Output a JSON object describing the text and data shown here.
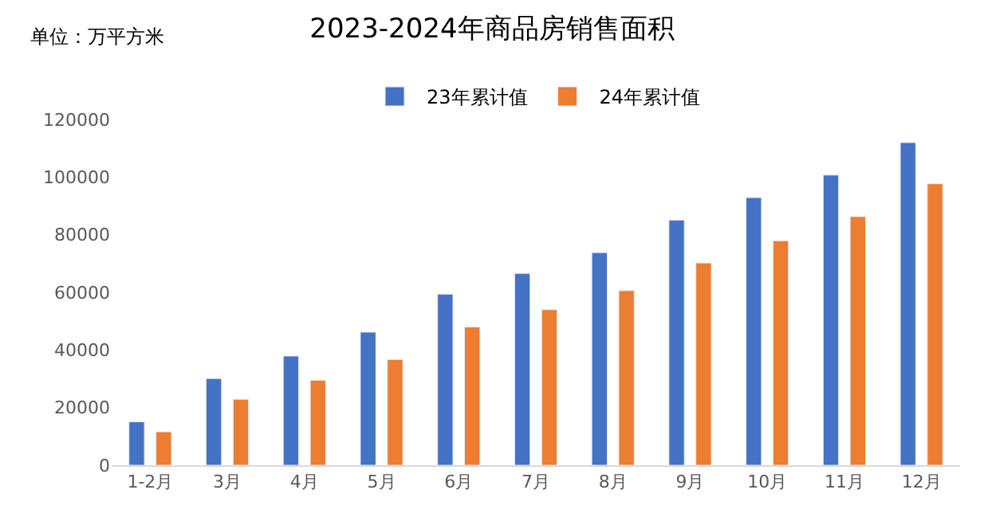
{
  "chart_data": {
    "type": "bar",
    "title": "2023-2024年商品房销售面积",
    "annotations": [
      "单位：万平方米"
    ],
    "categories": [
      "1-2月",
      "3月",
      "4月",
      "5月",
      "6月",
      "7月",
      "8月",
      "9月",
      "10月",
      "11月",
      "12月"
    ],
    "series": [
      {
        "name": "23年累计值",
        "color": "#4472c4",
        "values": [
          15100,
          30100,
          37900,
          46200,
          59400,
          66600,
          73800,
          85100,
          92900,
          100700,
          112000
        ]
      },
      {
        "name": "24年累计值",
        "color": "#ed7d31",
        "values": [
          11600,
          22900,
          29500,
          36700,
          48000,
          54000,
          60600,
          70200,
          77900,
          86300,
          97700
        ]
      }
    ],
    "ylim": [
      0,
      120000
    ],
    "yticks": [
      0,
      20000,
      40000,
      60000,
      80000,
      100000,
      120000
    ],
    "grid": false,
    "legend": "top"
  }
}
